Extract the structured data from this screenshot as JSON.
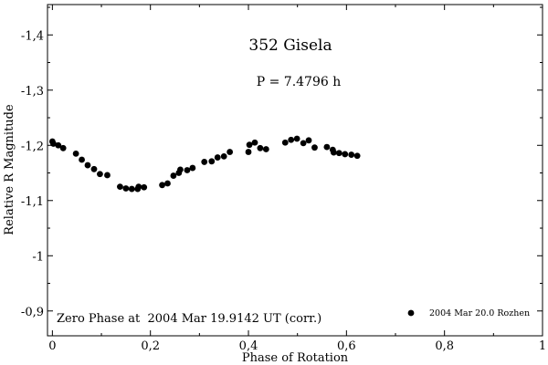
{
  "chart_data": {
    "type": "scatter",
    "title": "352 Gisela",
    "subtitle": "P = 7.4796 h",
    "annotation": "Zero Phase at  2004 Mar 19.9142 UT (corr.)",
    "xlabel": "Phase of Rotation",
    "ylabel": "Relative R Magnitude",
    "xlim": [
      -0.01,
      1.0
    ],
    "ylim": [
      -0.855,
      -1.455
    ],
    "y_inverted": true,
    "grid": false,
    "legend_position": "bottom-right",
    "colors": {
      "points": "#000000",
      "axes": "#000000"
    },
    "x_ticks": [
      {
        "value": 0.0,
        "label": "0"
      },
      {
        "value": 0.2,
        "label": "0,2"
      },
      {
        "value": 0.4,
        "label": "0,4"
      },
      {
        "value": 0.6,
        "label": "0,6"
      },
      {
        "value": 0.8,
        "label": "0,8"
      },
      {
        "value": 1.0,
        "label": "1"
      }
    ],
    "y_ticks": [
      {
        "value": -1.4,
        "label": "-1,4"
      },
      {
        "value": -1.3,
        "label": "-1,3"
      },
      {
        "value": -1.2,
        "label": "-1,2"
      },
      {
        "value": -1.1,
        "label": "-1,1"
      },
      {
        "value": -1.0,
        "label": "-1"
      },
      {
        "value": -0.9,
        "label": "-0,9"
      }
    ],
    "series": [
      {
        "name": "2004 Mar 20.0 Rozhen",
        "points": [
          [
            0.0,
            -1.207
          ],
          [
            0.002,
            -1.203
          ],
          [
            0.012,
            -1.2
          ],
          [
            0.022,
            -1.195
          ],
          [
            0.048,
            -1.185
          ],
          [
            0.06,
            -1.174
          ],
          [
            0.072,
            -1.164
          ],
          [
            0.085,
            -1.157
          ],
          [
            0.097,
            -1.148
          ],
          [
            0.112,
            -1.146
          ],
          [
            0.138,
            -1.125
          ],
          [
            0.15,
            -1.122
          ],
          [
            0.162,
            -1.121
          ],
          [
            0.174,
            -1.121
          ],
          [
            0.176,
            -1.125
          ],
          [
            0.187,
            -1.124
          ],
          [
            0.224,
            -1.128
          ],
          [
            0.235,
            -1.131
          ],
          [
            0.247,
            -1.145
          ],
          [
            0.258,
            -1.15
          ],
          [
            0.261,
            -1.156
          ],
          [
            0.275,
            -1.155
          ],
          [
            0.286,
            -1.159
          ],
          [
            0.31,
            -1.17
          ],
          [
            0.325,
            -1.171
          ],
          [
            0.337,
            -1.178
          ],
          [
            0.35,
            -1.18
          ],
          [
            0.362,
            -1.188
          ],
          [
            0.4,
            -1.188
          ],
          [
            0.402,
            -1.201
          ],
          [
            0.413,
            -1.205
          ],
          [
            0.424,
            -1.195
          ],
          [
            0.436,
            -1.193
          ],
          [
            0.475,
            -1.205
          ],
          [
            0.487,
            -1.21
          ],
          [
            0.499,
            -1.212
          ],
          [
            0.512,
            -1.204
          ],
          [
            0.523,
            -1.209
          ],
          [
            0.535,
            -1.196
          ],
          [
            0.56,
            -1.197
          ],
          [
            0.572,
            -1.192
          ],
          [
            0.574,
            -1.187
          ],
          [
            0.585,
            -1.186
          ],
          [
            0.597,
            -1.184
          ],
          [
            0.61,
            -1.183
          ],
          [
            0.622,
            -1.181
          ]
        ]
      }
    ]
  }
}
